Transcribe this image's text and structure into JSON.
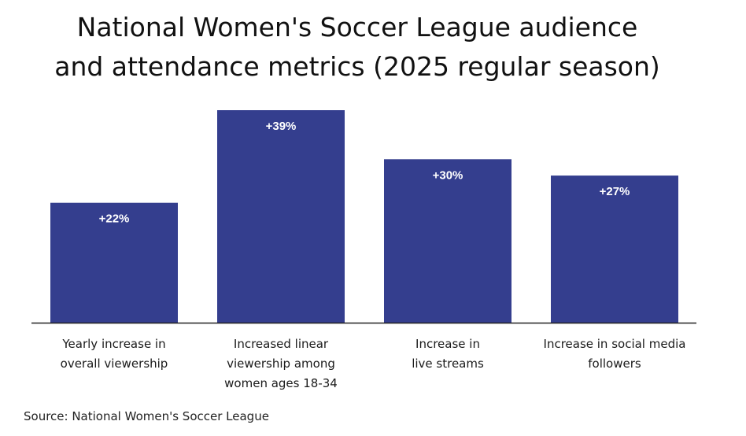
{
  "chart_data": {
    "type": "bar",
    "title_lines": [
      "National Women's Soccer League audience",
      "and attendance metrics (2025 regular season)"
    ],
    "categories": [
      [
        "Yearly increase in",
        "overall viewership"
      ],
      [
        "Increased linear",
        "viewership among",
        "women ages 18-34"
      ],
      [
        "Increase in",
        "live streams"
      ],
      [
        "Increase in social media",
        "followers"
      ]
    ],
    "values": [
      22,
      39,
      30,
      27
    ],
    "data_labels": [
      "+22%",
      "+39%",
      "+30%",
      "+27%"
    ],
    "unit": "%",
    "ylim": [
      0,
      39
    ],
    "grid": false,
    "legend": "none",
    "colors": {
      "bar": "#343e8e",
      "label": "#ffffff",
      "axis": "#222222"
    }
  },
  "source": "Source: National Women's Soccer League"
}
